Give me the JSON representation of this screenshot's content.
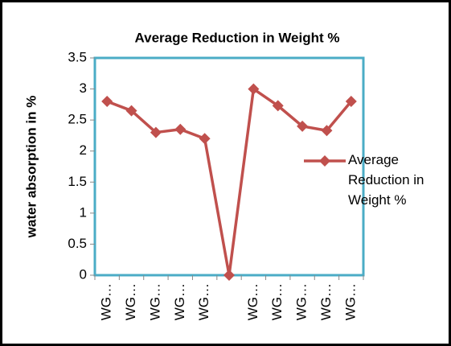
{
  "chart_data": {
    "type": "line",
    "title": "Average Reduction in Weight %",
    "ylabel": "water absorption in %",
    "categories": [
      "WG…",
      "WG…",
      "WG…",
      "WG…",
      "WG…",
      null,
      "WG…",
      "WG…",
      "WG…",
      "WG…",
      "WG…"
    ],
    "series": [
      {
        "name": "Average Reduction in Weight %",
        "color": "#c0504d",
        "values": [
          2.8,
          2.65,
          2.3,
          2.35,
          2.2,
          0,
          3.0,
          2.73,
          2.4,
          2.33,
          2.8
        ]
      }
    ],
    "ylim": [
      0,
      3.5
    ],
    "yticks": [
      0,
      0.5,
      1,
      1.5,
      2,
      2.5,
      3,
      3.5
    ],
    "grid": false,
    "legend": "right"
  }
}
